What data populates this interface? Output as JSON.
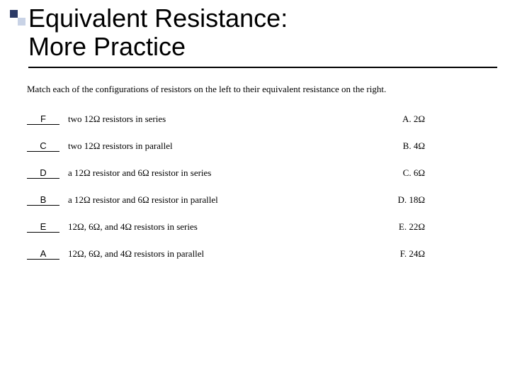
{
  "title_line1": "Equivalent Resistance:",
  "title_line2": "More Practice",
  "instructions": "Match each of the configurations of resistors on the left to their equivalent resistance on the right.",
  "rows": [
    {
      "answer": "F",
      "config": "two 12Ω resistors in series",
      "choice": "A. 2Ω"
    },
    {
      "answer": "C",
      "config": "two 12Ω resistors in parallel",
      "choice": "B. 4Ω"
    },
    {
      "answer": "D",
      "config": "a 12Ω  resistor and 6Ω resistor in series",
      "choice": "C. 6Ω"
    },
    {
      "answer": "B",
      "config": "a 12Ω  resistor and 6Ω resistor in parallel",
      "choice": "D. 18Ω"
    },
    {
      "answer": "E",
      "config": "12Ω, 6Ω, and 4Ω resistors in series",
      "choice": "E. 22Ω"
    },
    {
      "answer": "A",
      "config": "12Ω, 6Ω, and 4Ω resistors in parallel",
      "choice": "F. 24Ω"
    }
  ],
  "colors": {
    "accent_dark": "#2b3a66",
    "accent_light": "#c9d3e6",
    "text": "#000000",
    "background": "#ffffff",
    "rule": "#000000"
  }
}
